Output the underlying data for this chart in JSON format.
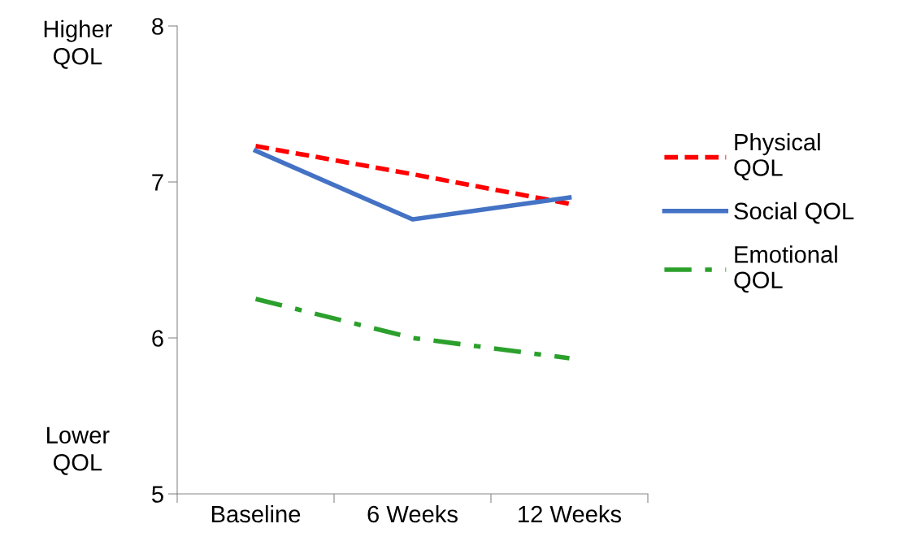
{
  "chart_data": {
    "type": "line",
    "categories": [
      "Baseline",
      "6 Weeks",
      "12 Weeks"
    ],
    "series": [
      {
        "name": "Physical QOL",
        "color": "#ff0000",
        "line_style": "dashed",
        "values": [
          7.23,
          7.05,
          6.86
        ]
      },
      {
        "name": "Social QOL",
        "color": "#4472c4",
        "line_style": "solid",
        "values": [
          7.2,
          6.76,
          6.9
        ]
      },
      {
        "name": "Emotional QOL",
        "color": "#2ca02c",
        "line_style": "dashdot",
        "values": [
          6.25,
          6.0,
          5.87
        ]
      }
    ],
    "ylim": [
      5,
      8
    ],
    "yticks": [
      5,
      6,
      7,
      8
    ],
    "grid": false,
    "legend": "right",
    "marker": "none",
    "annotations": [
      {
        "text": "Higher QOL"
      },
      {
        "text": "Lower QOL"
      }
    ]
  }
}
